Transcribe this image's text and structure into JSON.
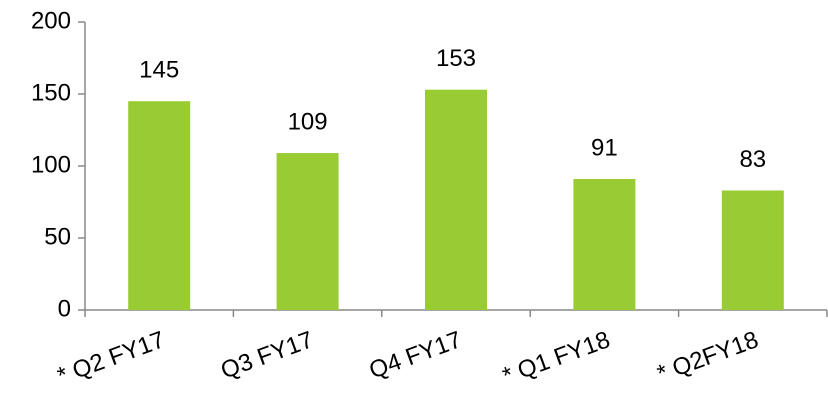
{
  "chart_data": {
    "type": "bar",
    "categories": [
      "* Q2 FY17",
      "Q3 FY17",
      "Q4 FY17",
      "* Q1 FY18",
      "* Q2FY18"
    ],
    "values": [
      145,
      109,
      153,
      91,
      83
    ],
    "color": "#99cc33",
    "ylim": [
      0,
      200
    ],
    "yticks": [
      0,
      50,
      100,
      150,
      200
    ],
    "grid": false
  }
}
